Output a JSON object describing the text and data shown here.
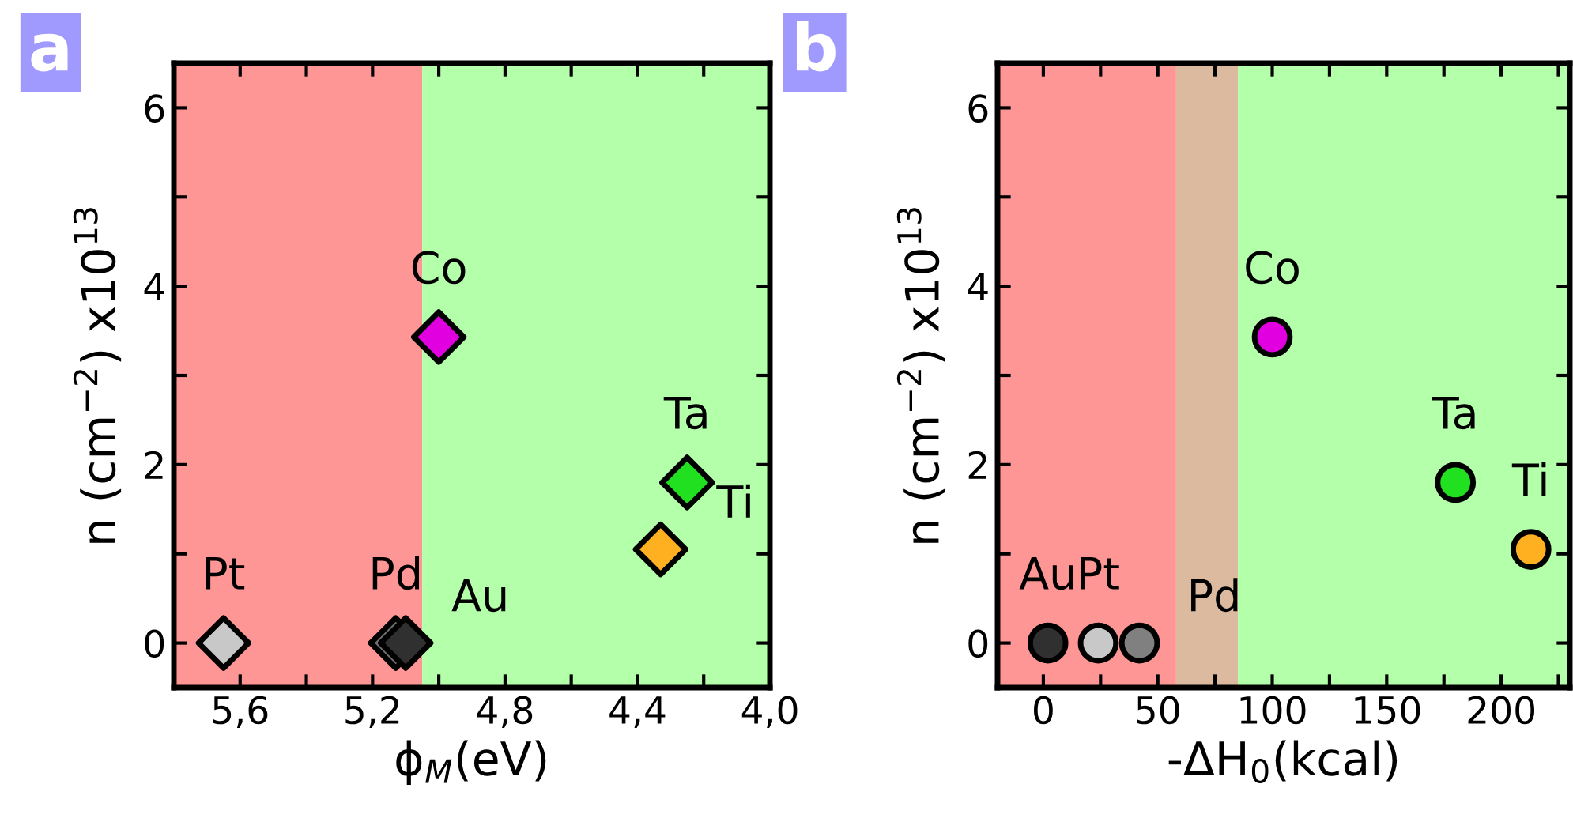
{
  "chart_data": [
    {
      "type": "scatter",
      "xlabel": "ϕ$_{M}$(eV)",
      "ylabel": "n (cm$^{−2}$) x10$^{13}$",
      "marker": "diamond",
      "grid": false,
      "legend": false,
      "x": [
        5.65,
        5.13,
        5.1,
        5.0,
        4.25,
        4.33
      ],
      "series": [
        {
          "values": [
            0,
            0,
            0,
            3.43,
            1.8,
            1.05
          ],
          "colors": [
            "#c8c8c8",
            "#707070",
            "#303030",
            "#e000e0",
            "#20e020",
            "#ffb020"
          ]
        }
      ],
      "xlim": [
        5.8,
        4.0
      ],
      "xticks": [
        {
          "value": 5.6,
          "label": "5,6"
        },
        {
          "value": 5.4,
          "label": null
        },
        {
          "value": 5.2,
          "label": "5,2"
        },
        {
          "value": 5.0,
          "label": null
        },
        {
          "value": 4.8,
          "label": "4,8"
        },
        {
          "value": 4.6,
          "label": null
        },
        {
          "value": 4.4,
          "label": "4,4"
        },
        {
          "value": 4.2,
          "label": null
        },
        {
          "value": 4.0,
          "label": "4,0"
        }
      ],
      "ylim": [
        -0.5,
        6.5
      ],
      "yticks": [
        0,
        {
          "value": 1,
          "label": null
        },
        2,
        {
          "value": 3,
          "label": null
        },
        4,
        {
          "value": 5,
          "label": null
        },
        6
      ],
      "bands": [
        {
          "axis": "x",
          "from": 5.8,
          "to": 5.05,
          "color": "#ff9696"
        },
        {
          "axis": "x",
          "from": 5.05,
          "to": 4.0,
          "color": "#b4ffaa"
        }
      ],
      "annotations": [
        "a",
        {
          "text": "Pt",
          "x": 5.65,
          "y": 0
        },
        {
          "text": "Pd",
          "x": 5.13,
          "y": 0
        },
        {
          "text": "Au",
          "x": 5.1,
          "y": 0
        },
        {
          "text": "Co",
          "x": 5.0,
          "y": 3.43
        },
        {
          "text": "Ta",
          "x": 4.25,
          "y": 1.8
        },
        {
          "text": "Ti",
          "x": 4.33,
          "y": 1.05
        }
      ]
    },
    {
      "type": "scatter",
      "xlabel": "-ΔH$_{0}$(kcal)",
      "ylabel": "n (cm$^{−2}$) x10$^{13}$",
      "marker": "circle",
      "grid": false,
      "legend": false,
      "x": [
        2,
        24,
        42,
        100,
        180,
        213
      ],
      "series": [
        {
          "values": [
            0,
            0,
            0,
            3.43,
            1.8,
            1.05
          ],
          "colors": [
            "#303030",
            "#c8c8c8",
            "#808080",
            "#e000e0",
            "#20e020",
            "#ffb020"
          ]
        }
      ],
      "xlim": [
        -20,
        230
      ],
      "xticks": [
        0,
        {
          "value": 25,
          "label": null
        },
        50,
        {
          "value": 75,
          "label": null
        },
        100,
        {
          "value": 125,
          "label": null
        },
        150,
        {
          "value": 175,
          "label": null
        },
        200,
        {
          "value": 225,
          "label": null
        }
      ],
      "ylim": [
        -0.5,
        6.5
      ],
      "yticks": [
        0,
        {
          "value": 1,
          "label": null
        },
        2,
        {
          "value": 3,
          "label": null
        },
        4,
        {
          "value": 5,
          "label": null
        },
        6
      ],
      "bands": [
        {
          "axis": "x",
          "from": -20,
          "to": 58,
          "color": "#ff9696"
        },
        {
          "axis": "x",
          "from": 58,
          "to": 85,
          "color": "#dcbaa0"
        },
        {
          "axis": "x",
          "from": 85,
          "to": 230,
          "color": "#b4ffaa"
        }
      ],
      "annotations": [
        "b",
        {
          "text": "Au",
          "x": 2,
          "y": 0
        },
        {
          "text": "Pt",
          "x": 24,
          "y": 0
        },
        {
          "text": "Pd",
          "x": 42,
          "y": 0
        },
        {
          "text": "Co",
          "x": 100,
          "y": 3.43
        },
        {
          "text": "Ta",
          "x": 180,
          "y": 1.8
        },
        {
          "text": "Ti",
          "x": 213,
          "y": 1.05
        }
      ]
    }
  ]
}
